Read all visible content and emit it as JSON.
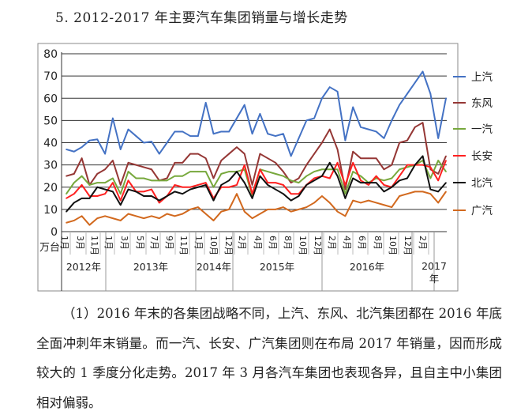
{
  "title": "5. 2012-2017 年主要汽车集团销量与增长走势",
  "paragraph": "（1）2016 年末的各集团战略不同，上汽、东风、北汽集团都在 2016 年底全面冲刺年末销量。而一汽、长安、广汽集团则在布局 2017 年销量，因而形成较大的 1 季度分化走势。2017 年 3 月各汽车集团也表现各异，且自主中小集团相对偏弱。",
  "chart_data": {
    "type": "line",
    "ylabel": "万台",
    "ylim": [
      0,
      80
    ],
    "yticks": [
      0,
      10,
      20,
      30,
      40,
      50,
      60,
      70,
      80
    ],
    "grid": true,
    "legend": "right",
    "month_labels": [
      "1月",
      "3月",
      "11月",
      "1月",
      "3月",
      "5月",
      "7月",
      "9月",
      "11月",
      "1月",
      "10月",
      "12月",
      "2月",
      "4月",
      "6月",
      "8月",
      "10月",
      "12月",
      "2月",
      "4月",
      "6月",
      "8月",
      "10月",
      "12月",
      "2月"
    ],
    "year_labels": [
      "2012年",
      "2013年",
      "2014年",
      "2015年",
      "2016年",
      "2017年"
    ],
    "series": [
      {
        "name": "上汽",
        "color": "#4472c4",
        "values": [
          37,
          36,
          38,
          41,
          41.5,
          35,
          51,
          37,
          46,
          43,
          40,
          40.5,
          35,
          40,
          45,
          45,
          43,
          43,
          58,
          44,
          45,
          45,
          51,
          57,
          44,
          53,
          44,
          43,
          44,
          34,
          42,
          50,
          51,
          60,
          65,
          63,
          41,
          56,
          47,
          46,
          45,
          42,
          50,
          57,
          62,
          67,
          72,
          62,
          42,
          60
        ]
      },
      {
        "name": "东风",
        "color": "#953735",
        "values": [
          25,
          26,
          33,
          21,
          26,
          28,
          32,
          21,
          31,
          30,
          29,
          28,
          23,
          24,
          31,
          31,
          35,
          35,
          33,
          24,
          32,
          35,
          38,
          35,
          21,
          35,
          33,
          31,
          27,
          22,
          24,
          30,
          35,
          40,
          46,
          37,
          19,
          36,
          33,
          33,
          33,
          28,
          30,
          40,
          41,
          47,
          49,
          28,
          26,
          34
        ]
      },
      {
        "name": "一汽",
        "color": "#77a83c",
        "values": [
          17,
          22,
          25,
          21,
          22,
          22,
          24,
          17,
          27,
          24,
          24,
          23,
          23,
          23,
          25,
          25,
          27,
          27,
          27,
          20,
          26,
          27,
          27,
          28,
          16,
          28,
          27,
          26,
          25,
          23,
          22,
          25,
          27,
          28,
          28,
          28,
          17,
          27,
          25,
          22,
          24,
          23,
          24,
          28,
          29,
          30,
          32,
          24,
          32,
          27
        ]
      },
      {
        "name": "长安",
        "color": "#ff2020",
        "values": [
          15,
          17,
          21,
          16,
          16,
          17,
          22,
          14,
          23,
          18,
          18,
          19,
          13,
          16,
          21,
          20,
          20,
          21,
          22,
          15,
          20,
          20,
          21,
          30,
          17,
          28,
          22,
          22,
          21,
          17,
          17,
          21,
          24,
          25,
          24,
          31,
          21,
          31,
          23,
          21,
          25,
          21,
          20,
          25,
          30,
          30,
          30,
          29,
          23,
          32
        ]
      },
      {
        "name": "北汽",
        "color": "#111111",
        "values": [
          9,
          13,
          15,
          15,
          20,
          19,
          18,
          12,
          19,
          18,
          16,
          16,
          14,
          16,
          18,
          17,
          19,
          20,
          21,
          14,
          21,
          23,
          27,
          22,
          15,
          25,
          21,
          19,
          17,
          14,
          16,
          21,
          23,
          25,
          31,
          25,
          15,
          24,
          22,
          22,
          22,
          18,
          20,
          23,
          24,
          30,
          34,
          19,
          18,
          22
        ]
      },
      {
        "name": "广汽",
        "color": "#d2691e",
        "values": [
          4,
          5,
          7,
          3,
          6,
          7,
          6,
          5,
          8,
          7,
          6,
          7,
          6,
          8,
          7,
          8,
          10,
          11,
          8,
          5,
          9,
          10,
          17,
          9,
          6,
          8,
          10,
          10,
          11,
          9,
          10,
          11,
          13,
          16,
          13,
          9,
          7,
          14,
          13,
          14,
          13,
          12,
          11,
          16,
          17,
          18,
          18,
          17,
          13,
          18
        ]
      }
    ]
  }
}
